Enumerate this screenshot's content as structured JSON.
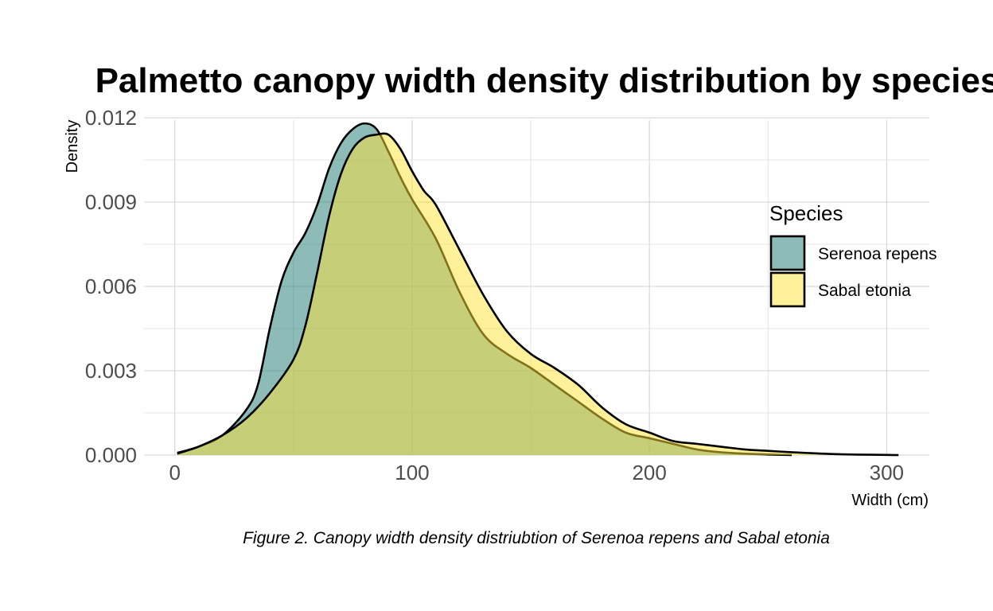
{
  "chart_data": {
    "type": "area",
    "title": "Palmetto canopy width density distribution by species",
    "xlabel": "Width (cm)",
    "ylabel": "Density",
    "caption": "Figure 2. Canopy width density distriubtion of Serenoa repens and Sabal etonia",
    "xlim": [
      -13,
      318
    ],
    "ylim": [
      0,
      0.0122
    ],
    "x_ticks": [
      0,
      100,
      200,
      300
    ],
    "x_tick_labels": [
      "0",
      "100",
      "200",
      "300"
    ],
    "y_ticks": [
      0,
      0.003,
      0.006,
      0.009,
      0.012
    ],
    "y_tick_labels": [
      "0.000",
      "0.003",
      "0.006",
      "0.009",
      "0.012"
    ],
    "grid": true,
    "legend": {
      "title": "Species",
      "placement": "right"
    },
    "series": [
      {
        "name": "Serenoa repens",
        "color": "#1b7a72",
        "x": [
          1,
          10,
          20,
          30,
          35,
          40,
          45,
          50,
          55,
          60,
          65,
          70,
          75,
          80,
          85,
          90,
          95,
          100,
          110,
          120,
          130,
          140,
          150,
          160,
          170,
          180,
          190,
          200,
          210,
          220,
          230,
          240,
          250,
          260
        ],
        "y": [
          8e-05,
          0.0003,
          0.0007,
          0.0016,
          0.0025,
          0.0045,
          0.0062,
          0.0072,
          0.0079,
          0.0089,
          0.0102,
          0.0111,
          0.0116,
          0.0118,
          0.0116,
          0.0108,
          0.0099,
          0.0091,
          0.0077,
          0.0058,
          0.0043,
          0.0036,
          0.0031,
          0.0025,
          0.0019,
          0.0013,
          0.0008,
          0.0006,
          0.0004,
          0.0002,
          0.0001,
          5e-05,
          2e-05,
          0.0
        ]
      },
      {
        "name": "Sabal etonia",
        "color": "#ffe135",
        "x": [
          1,
          10,
          20,
          30,
          40,
          50,
          55,
          60,
          65,
          70,
          75,
          80,
          85,
          90,
          95,
          100,
          105,
          110,
          120,
          130,
          140,
          150,
          160,
          170,
          180,
          190,
          200,
          210,
          220,
          230,
          240,
          250,
          260,
          280,
          305
        ],
        "y": [
          5e-05,
          0.0003,
          0.0007,
          0.0013,
          0.0022,
          0.0034,
          0.0046,
          0.0065,
          0.0085,
          0.01,
          0.0109,
          0.0113,
          0.0114,
          0.0114,
          0.0109,
          0.0101,
          0.0094,
          0.0089,
          0.0073,
          0.0057,
          0.0044,
          0.0036,
          0.0031,
          0.0025,
          0.0017,
          0.0011,
          0.0008,
          0.0005,
          0.0004,
          0.0003,
          0.0002,
          0.00015,
          0.0001,
          3e-05,
          0.0
        ]
      }
    ]
  }
}
